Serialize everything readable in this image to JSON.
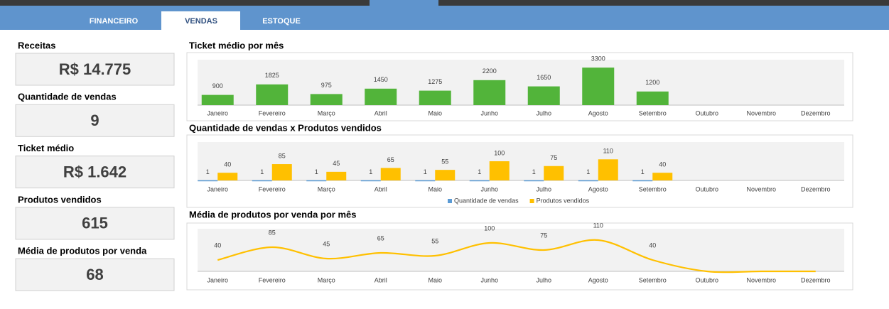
{
  "tabs": [
    "FINANCEIRO",
    "VENDAS",
    "ESTOQUE"
  ],
  "active_tab": 1,
  "kpis": [
    {
      "label": "Receitas",
      "value": "R$ 14.775"
    },
    {
      "label": "Quantidade de vendas",
      "value": "9"
    },
    {
      "label": "Ticket médio",
      "value": "R$ 1.642"
    },
    {
      "label": "Produtos vendidos",
      "value": "615"
    },
    {
      "label": "Média de produtos por venda",
      "value": "68"
    }
  ],
  "chart_data": [
    {
      "type": "bar",
      "title": "Ticket médio por mês",
      "categories": [
        "Janeiro",
        "Fevereiro",
        "Março",
        "Abril",
        "Maio",
        "Junho",
        "Julho",
        "Agosto",
        "Setembro",
        "Outubro",
        "Novembro",
        "Dezembro"
      ],
      "values": [
        900,
        1825,
        975,
        1450,
        1275,
        2200,
        1650,
        3300,
        1200,
        null,
        null,
        null
      ],
      "color": "#52b43a",
      "ylim": [
        0,
        4000
      ]
    },
    {
      "type": "grouped_bar",
      "title": "Quantidade de vendas x Produtos vendidos",
      "categories": [
        "Janeiro",
        "Fevereiro",
        "Março",
        "Abril",
        "Maio",
        "Junho",
        "Julho",
        "Agosto",
        "Setembro",
        "Outubro",
        "Novembro",
        "Dezembro"
      ],
      "series": [
        {
          "name": "Quantidade de vendas",
          "color": "#5b9bd5",
          "values": [
            1,
            1,
            1,
            1,
            1,
            1,
            1,
            1,
            1,
            null,
            null,
            null
          ]
        },
        {
          "name": "Produtos vendidos",
          "color": "#ffc000",
          "values": [
            40,
            85,
            45,
            65,
            55,
            100,
            75,
            110,
            40,
            null,
            null,
            null
          ]
        }
      ],
      "ylim": [
        0,
        200
      ],
      "legend": "bottom"
    },
    {
      "type": "line",
      "title": "Média de produtos por venda por mês",
      "categories": [
        "Janeiro",
        "Fevereiro",
        "Março",
        "Abril",
        "Maio",
        "Junho",
        "Julho",
        "Agosto",
        "Setembro",
        "Outubro",
        "Novembro",
        "Dezembro"
      ],
      "values": [
        40,
        85,
        45,
        65,
        55,
        100,
        75,
        110,
        40,
        0,
        0,
        0
      ],
      "value_labels": [
        "40",
        "85",
        "45",
        "65",
        "55",
        "100",
        "75",
        "110",
        "40",
        null,
        null,
        null
      ],
      "color": "#ffc000",
      "smooth": true,
      "ylim": [
        0,
        150
      ]
    }
  ]
}
